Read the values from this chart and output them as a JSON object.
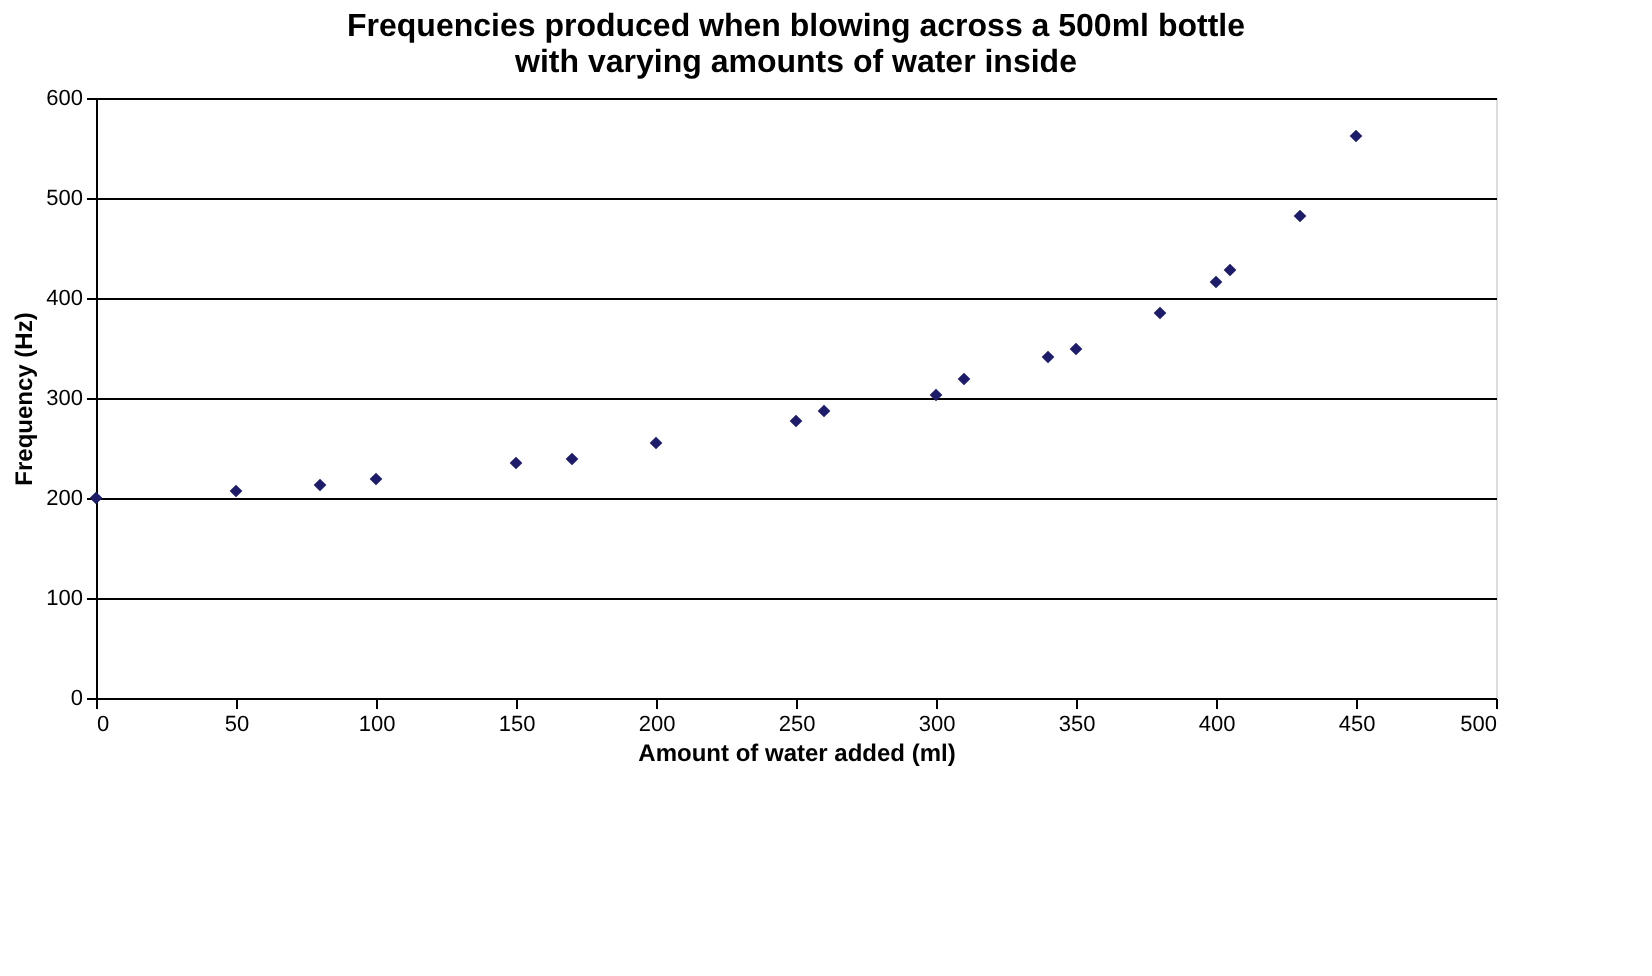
{
  "chart_data": {
    "type": "scatter",
    "title": [
      "Frequencies produced when blowing across a 500ml bottle",
      "with varying amounts of water inside"
    ],
    "xlabel": "Amount of water added (ml)",
    "ylabel": "Frequency (Hz)",
    "x": [
      0,
      50,
      80,
      100,
      150,
      170,
      200,
      250,
      260,
      300,
      310,
      340,
      350,
      380,
      400,
      405,
      430,
      450
    ],
    "series": [
      {
        "color": "#1c1c6b",
        "values": [
          200,
          207,
          213,
          219,
          235,
          239,
          255,
          277,
          287,
          303,
          319,
          341,
          349,
          385,
          416,
          428,
          482,
          562
        ]
      }
    ],
    "xlim": [
      0,
      500
    ],
    "xticks": [
      0,
      50,
      100,
      150,
      200,
      250,
      300,
      350,
      400,
      450,
      500
    ],
    "ylim": [
      0,
      600
    ],
    "yticks": [
      0,
      100,
      200,
      300,
      400,
      500,
      600
    ],
    "grid": "y",
    "marker": "diamond"
  }
}
